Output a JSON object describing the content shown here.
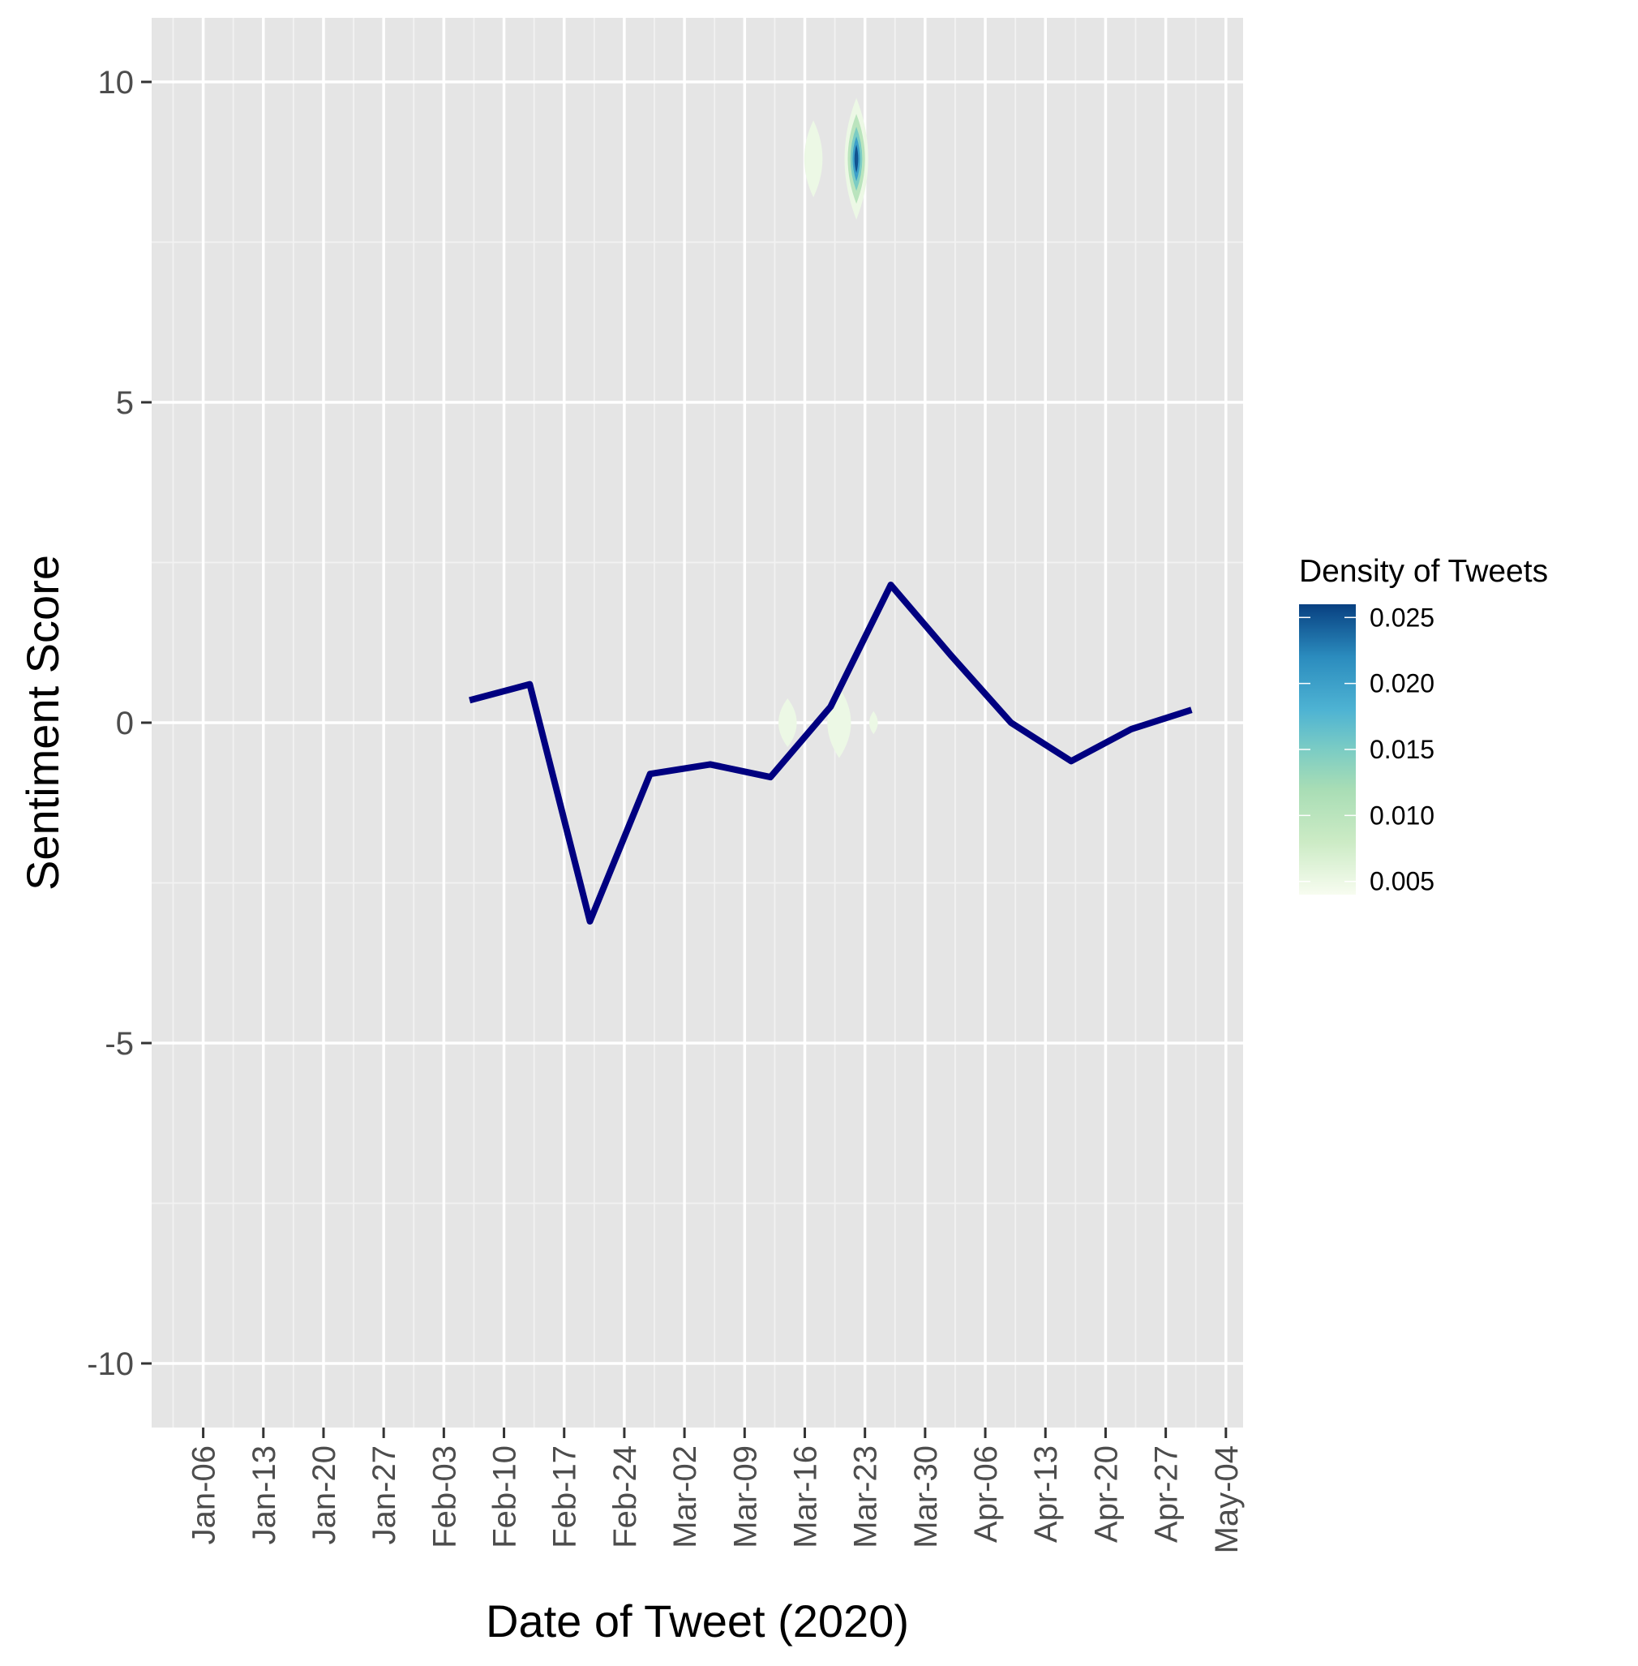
{
  "chart_data": {
    "type": "line",
    "title": "",
    "xlabel": "Date of Tweet (2020)",
    "ylabel": "Sentiment Score",
    "x_tick_labels": [
      "Jan-06",
      "Jan-13",
      "Jan-20",
      "Jan-27",
      "Feb-03",
      "Feb-10",
      "Feb-17",
      "Feb-24",
      "Mar-02",
      "Mar-09",
      "Mar-16",
      "Mar-23",
      "Mar-30",
      "Apr-06",
      "Apr-13",
      "Apr-20",
      "Apr-27",
      "May-04"
    ],
    "x_tick_dates": [
      "2020-01-06",
      "2020-01-13",
      "2020-01-20",
      "2020-01-27",
      "2020-02-03",
      "2020-02-10",
      "2020-02-17",
      "2020-02-24",
      "2020-03-02",
      "2020-03-09",
      "2020-03-16",
      "2020-03-23",
      "2020-03-30",
      "2020-04-06",
      "2020-04-13",
      "2020-04-20",
      "2020-04-27",
      "2020-05-04"
    ],
    "xlim": [
      "2019-12-31",
      "2020-05-06"
    ],
    "y_ticks": [
      -10,
      -5,
      0,
      5,
      10
    ],
    "ylim": [
      -11,
      11
    ],
    "grid": true,
    "series": [
      {
        "color": "#000080",
        "points": [
          {
            "x": "2020-02-06",
            "y": 0.35
          },
          {
            "x": "2020-02-13",
            "y": 0.6
          },
          {
            "x": "2020-02-20",
            "y": -3.1
          },
          {
            "x": "2020-02-27",
            "y": -0.8
          },
          {
            "x": "2020-03-05",
            "y": -0.65
          },
          {
            "x": "2020-03-12",
            "y": -0.85
          },
          {
            "x": "2020-03-19",
            "y": 0.25
          },
          {
            "x": "2020-03-26",
            "y": 2.15
          },
          {
            "x": "2020-04-02",
            "y": 1.05
          },
          {
            "x": "2020-04-09",
            "y": 0.0
          },
          {
            "x": "2020-04-16",
            "y": -0.6
          },
          {
            "x": "2020-04-23",
            "y": -0.1
          },
          {
            "x": "2020-04-30",
            "y": 0.2
          }
        ]
      }
    ],
    "density": {
      "legend_title": "Density of Tweets",
      "legend_position": "right",
      "legend_labels": [
        "0.025",
        "0.020",
        "0.015",
        "0.010",
        "0.005"
      ],
      "legend_values": [
        0.025,
        0.02,
        0.015,
        0.01,
        0.005
      ],
      "value_range": [
        0.004,
        0.026
      ],
      "color_stops": [
        {
          "value": 0.004,
          "color": "#f7fcf0"
        },
        {
          "value": 0.008,
          "color": "#ccebc5"
        },
        {
          "value": 0.012,
          "color": "#a8ddb5"
        },
        {
          "value": 0.015,
          "color": "#7bccc4"
        },
        {
          "value": 0.018,
          "color": "#4eb3d3"
        },
        {
          "value": 0.022,
          "color": "#2b8cbe"
        },
        {
          "value": 0.026,
          "color": "#084081"
        }
      ],
      "blobs": [
        {
          "x": "2020-03-17",
          "y": 8.8,
          "x_halfwidth_days": 1.7,
          "y_halfwidth": 0.6,
          "level": 0.005
        },
        {
          "x": "2020-03-22",
          "y": 8.8,
          "x_halfwidth_days": 2.2,
          "y_halfwidth": 0.95,
          "level": 0.005
        },
        {
          "x": "2020-03-22",
          "y": 8.8,
          "x_halfwidth_days": 1.6,
          "y_halfwidth": 0.7,
          "level": 0.01
        },
        {
          "x": "2020-03-22",
          "y": 8.8,
          "x_halfwidth_days": 1.1,
          "y_halfwidth": 0.5,
          "level": 0.015
        },
        {
          "x": "2020-03-22",
          "y": 8.8,
          "x_halfwidth_days": 0.7,
          "y_halfwidth": 0.35,
          "level": 0.02
        },
        {
          "x": "2020-03-22",
          "y": 8.8,
          "x_halfwidth_days": 0.35,
          "y_halfwidth": 0.22,
          "level": 0.025
        },
        {
          "x": "2020-03-14",
          "y": 0.0,
          "x_halfwidth_days": 1.7,
          "y_halfwidth": 0.38,
          "level": 0.005
        },
        {
          "x": "2020-03-20",
          "y": 0.0,
          "x_halfwidth_days": 2.2,
          "y_halfwidth": 0.55,
          "level": 0.005
        },
        {
          "x": "2020-03-24",
          "y": 0.0,
          "x_halfwidth_days": 0.8,
          "y_halfwidth": 0.18,
          "level": 0.005
        }
      ]
    }
  }
}
